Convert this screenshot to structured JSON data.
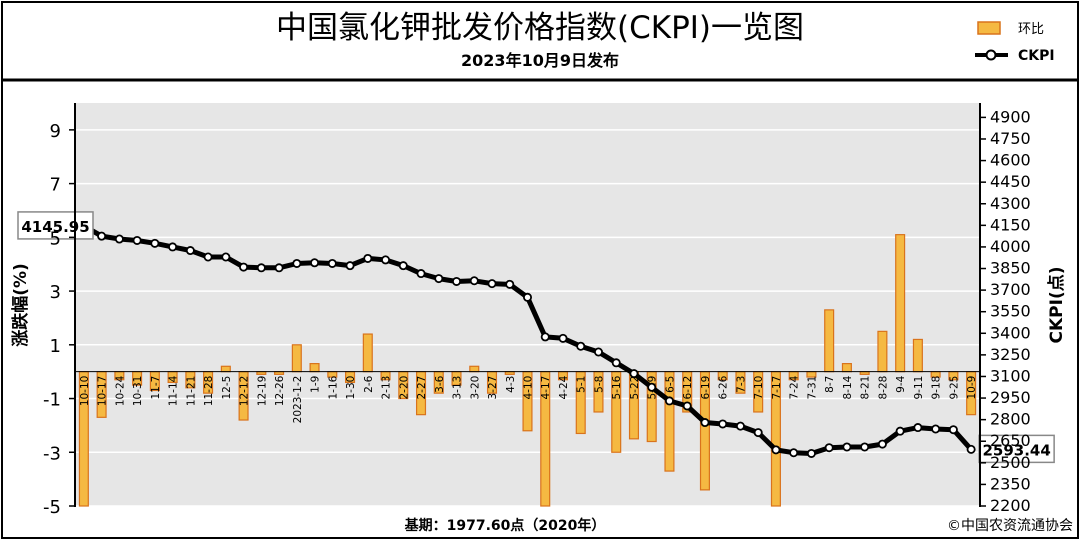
{
  "header": {
    "title": "中国氯化钾批发价格指数(CKPI)一览图",
    "subtitle": "2023年10月9日发布"
  },
  "legend": {
    "bar_label": "环比",
    "line_label": "CKPI"
  },
  "footer": {
    "base_note": "基期：1977.60点（2020年）",
    "credit": "©中国农资流通协会"
  },
  "colors": {
    "bar_fill": "#f5b942",
    "bar_edge": "#d9731c",
    "line": "#000000",
    "plot_bg": "#e6e6e6",
    "grid": "#ffffff"
  },
  "chart_data": {
    "type": "bar+line",
    "title": "中国氯化钾批发价格指数(CKPI)一览图",
    "subtitle": "2023年10月9日发布",
    "ylabel_left": "涨跌幅(%)",
    "ylabel_right": "CKPI(点)",
    "ylim_left": [
      -5,
      10
    ],
    "yticks_left": [
      9,
      7,
      5,
      3,
      1,
      -1,
      -3,
      -5
    ],
    "ylim_right": [
      2200,
      5000
    ],
    "yticks_right": [
      4900,
      4750,
      4600,
      4450,
      4300,
      4150,
      4000,
      3850,
      3700,
      3550,
      3400,
      3250,
      3100,
      2950,
      2800,
      2650,
      2500,
      2350,
      2200
    ],
    "grid": true,
    "legend_position": "top-right",
    "x_tick_labels": [
      "10-10",
      "10-17",
      "10-24",
      "10-31",
      "11-7",
      "11-14",
      "11-21",
      "11-28",
      "12-5",
      "12-12",
      "12-19",
      "12-26",
      "2023-1-2",
      "1-9",
      "1-16",
      "1-30",
      "2-6",
      "2-13",
      "2-20",
      "2-27",
      "3-6",
      "3-13",
      "3-20",
      "3-27",
      "4-3",
      "4-10",
      "4-17",
      "4-24",
      "5-1",
      "5-8",
      "5-16",
      "5-22",
      "5-29",
      "6-5",
      "6-12",
      "6-19",
      "6-26",
      "7-3",
      "7-10",
      "7-17",
      "7-24",
      "7-31",
      "8-7",
      "8-14",
      "8-21",
      "8-28",
      "9-4",
      "9-11",
      "9-18",
      "9-25",
      "10-9"
    ],
    "series": [
      {
        "name": "环比",
        "type": "bar",
        "axis": "left",
        "values": [
          -5.0,
          -1.7,
          -0.3,
          -0.5,
          -0.7,
          -0.4,
          -0.6,
          -0.8,
          0.2,
          -1.8,
          -0.1,
          -0.1,
          1.0,
          0.3,
          -0.2,
          -0.4,
          1.4,
          -0.3,
          -1.0,
          -1.6,
          -0.8,
          -0.5,
          0.2,
          -0.8,
          -0.1,
          -2.2,
          -5.0,
          -0.3,
          -2.3,
          -1.5,
          -3.0,
          -2.5,
          -2.6,
          -3.7,
          -1.5,
          -4.4,
          -0.3,
          -0.8,
          -1.5,
          -5.0,
          -0.3,
          -0.2,
          2.3,
          0.3,
          -0.1,
          1.5,
          5.1,
          1.2,
          -0.2,
          -0.3,
          -1.6
        ]
      },
      {
        "name": "CKPI",
        "type": "line",
        "axis": "right",
        "values": [
          4145.95,
          4075,
          4055,
          4045,
          4025,
          4000,
          3975,
          3930,
          3930,
          3860,
          3855,
          3855,
          3885,
          3890,
          3885,
          3870,
          3920,
          3910,
          3870,
          3815,
          3780,
          3760,
          3765,
          3745,
          3740,
          3650,
          3375,
          3365,
          3310,
          3270,
          3195,
          3120,
          3025,
          2930,
          2895,
          2780,
          2770,
          2755,
          2710,
          2590,
          2570,
          2565,
          2605,
          2610,
          2610,
          2630,
          2720,
          2745,
          2735,
          2730,
          2593.44
        ]
      }
    ],
    "annotations": [
      {
        "point": 0,
        "text": "4145.95"
      },
      {
        "point": 50,
        "text": "2593.44"
      }
    ]
  }
}
